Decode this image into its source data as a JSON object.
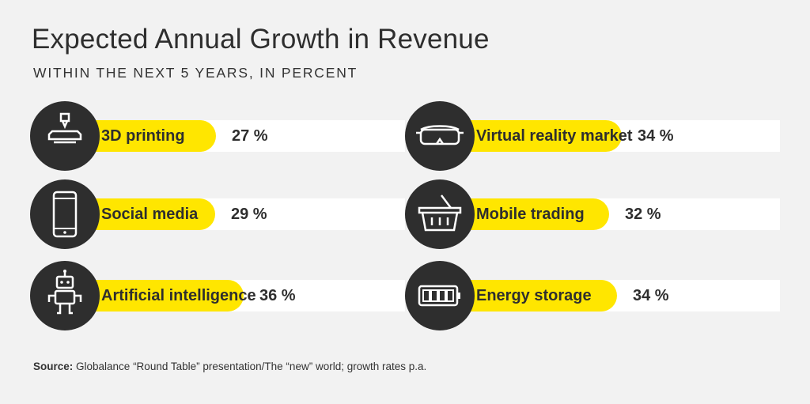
{
  "header": {
    "title": "Expected Annual Growth in Revenue",
    "subtitle": "WITHIN THE NEXT 5 YEARS, IN PERCENT"
  },
  "colors": {
    "background": "#f2f2f2",
    "bar": "#ffe600",
    "track": "#ffffff",
    "icon_circle": "#2e2e2e",
    "text": "#2e2e2e"
  },
  "chart_data": {
    "type": "bar",
    "orientation": "horizontal",
    "title": "Expected Annual Growth in Revenue",
    "subtitle": "WITHIN THE NEXT 5 YEARS, IN PERCENT",
    "categories": [
      "3D printing",
      "Social media",
      "Artificial intelligence",
      "Virtual reality market",
      "Mobile trading",
      "Energy storage"
    ],
    "values": [
      27,
      29,
      36,
      34,
      32,
      34
    ],
    "value_labels": [
      "27 %",
      "29 %",
      "36 %",
      "34 %",
      "32 %",
      "34 %"
    ],
    "icons": [
      "3d-printer-icon",
      "smartphone-icon",
      "robot-icon",
      "vr-headset-icon",
      "shopping-basket-icon",
      "battery-icon"
    ],
    "ylim": [
      0,
      50
    ],
    "grid": false
  },
  "source": {
    "label": "Source:",
    "text": " Globalance “Round Table” presentation/The “new” world; growth rates p.a."
  }
}
